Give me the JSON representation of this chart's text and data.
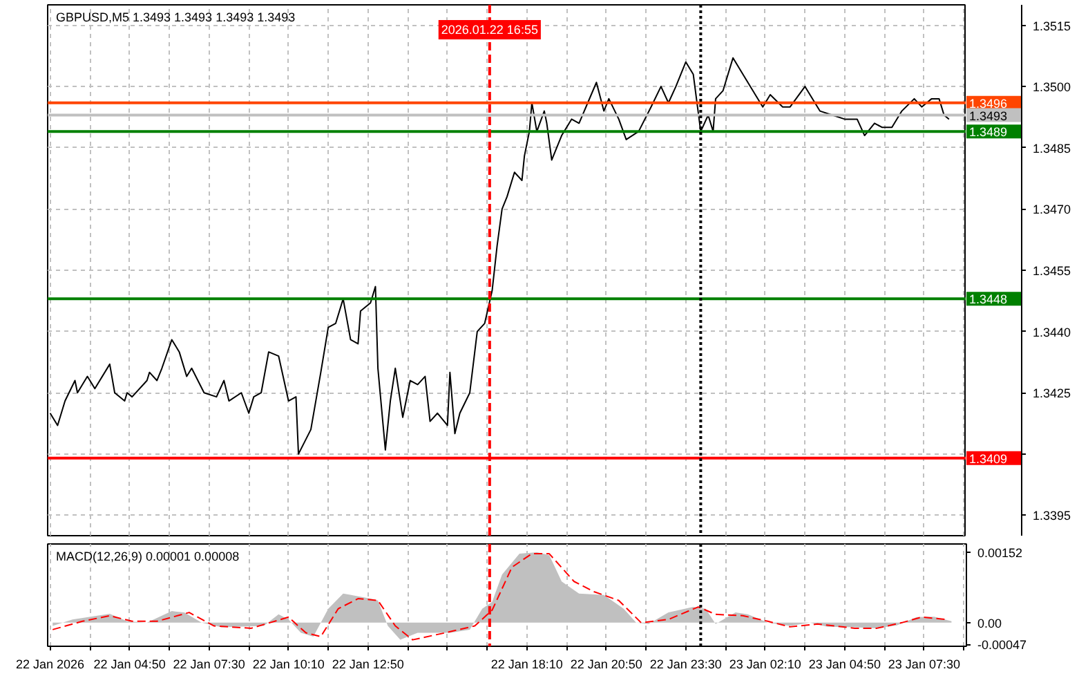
{
  "chart_data": [
    {
      "type": "line",
      "title": "GBPUSD,M5 1.3493 1.3493 1.3493 1.3493",
      "x": [
        "2026-01-22T02:10",
        "2026-01-22T02:25",
        "2026-01-22T02:40",
        "2026-01-22T03:00",
        "2026-01-22T03:05",
        "2026-01-22T03:25",
        "2026-01-22T03:40",
        "2026-01-22T04:10",
        "2026-01-22T04:20",
        "2026-01-22T04:40",
        "2026-01-22T04:45",
        "2026-01-22T04:55",
        "2026-01-22T05:25",
        "2026-01-22T05:30",
        "2026-01-22T05:45",
        "2026-01-22T05:55",
        "2026-01-22T06:15",
        "2026-01-22T06:30",
        "2026-01-22T06:45",
        "2026-01-22T06:55",
        "2026-01-22T07:20",
        "2026-01-22T07:45",
        "2026-01-22T08:00",
        "2026-01-22T08:10",
        "2026-01-22T08:35",
        "2026-01-22T08:50",
        "2026-01-22T09:00",
        "2026-01-22T09:15",
        "2026-01-22T09:30",
        "2026-01-22T09:50",
        "2026-01-22T10:10",
        "2026-01-22T10:25",
        "2026-01-22T10:30",
        "2026-01-22T10:55",
        "2026-01-22T11:15",
        "2026-01-22T11:30",
        "2026-01-22T11:45",
        "2026-01-22T12:00",
        "2026-01-22T12:15",
        "2026-01-22T12:30",
        "2026-01-22T12:35",
        "2026-01-22T12:55",
        "2026-01-22T13:05",
        "2026-01-22T13:10",
        "2026-01-22T13:25",
        "2026-01-22T13:35",
        "2026-01-22T13:45",
        "2026-01-22T14:00",
        "2026-01-22T14:15",
        "2026-01-22T14:30",
        "2026-01-22T14:45",
        "2026-01-22T14:55",
        "2026-01-22T15:10",
        "2026-01-22T15:30",
        "2026-01-22T15:35",
        "2026-01-22T15:45",
        "2026-01-22T15:55",
        "2026-01-22T16:15",
        "2026-01-22T16:30",
        "2026-01-22T16:45",
        "2026-01-22T17:00",
        "2026-01-22T17:10",
        "2026-01-22T17:20",
        "2026-01-22T17:30",
        "2026-01-22T17:45",
        "2026-01-22T18:00",
        "2026-01-22T18:05",
        "2026-01-22T18:15",
        "2026-01-22T18:20",
        "2026-01-22T18:30",
        "2026-01-22T18:45",
        "2026-01-22T18:50",
        "2026-01-22T19:00",
        "2026-01-22T19:20",
        "2026-01-22T19:40",
        "2026-01-22T19:55",
        "2026-01-22T20:30",
        "2026-01-22T20:45",
        "2026-01-22T20:55",
        "2026-01-22T21:15",
        "2026-01-22T21:30",
        "2026-01-22T21:55",
        "2026-01-22T22:20",
        "2026-01-22T22:40",
        "2026-01-22T22:55",
        "2026-01-22T23:10",
        "2026-01-22T23:30",
        "2026-01-22T23:45",
        "2026-01-23T00:00",
        "2026-01-23T00:15",
        "2026-01-23T00:25",
        "2026-01-23T00:30",
        "2026-01-23T00:45",
        "2026-01-23T01:05",
        "2026-01-23T01:25",
        "2026-01-23T01:40",
        "2026-01-23T02:05",
        "2026-01-23T02:20",
        "2026-01-23T02:45",
        "2026-01-23T03:00",
        "2026-01-23T03:30",
        "2026-01-23T04:00",
        "2026-01-23T04:25",
        "2026-01-23T04:50",
        "2026-01-23T05:15",
        "2026-01-23T05:30",
        "2026-01-23T05:50",
        "2026-01-23T06:05",
        "2026-01-23T06:25",
        "2026-01-23T06:45",
        "2026-01-23T07:10",
        "2026-01-23T07:25",
        "2026-01-23T07:45",
        "2026-01-23T08:00",
        "2026-01-23T08:10",
        "2026-01-23T08:20"
      ],
      "series": [
        {
          "color": "#000000",
          "values": [
            1.342,
            1.3417,
            1.3423,
            1.3428,
            1.3425,
            1.3429,
            1.3426,
            1.3432,
            1.3425,
            1.3423,
            1.3425,
            1.3424,
            1.3428,
            1.343,
            1.3428,
            1.3431,
            1.3438,
            1.3435,
            1.3429,
            1.3431,
            1.3425,
            1.3424,
            1.3428,
            1.3423,
            1.3425,
            1.342,
            1.3424,
            1.3425,
            1.3435,
            1.3434,
            1.3423,
            1.3424,
            1.341,
            1.3416,
            1.343,
            1.3441,
            1.3442,
            1.3448,
            1.3438,
            1.3437,
            1.3445,
            1.3447,
            1.3451,
            1.3431,
            1.3411,
            1.3423,
            1.3431,
            1.3419,
            1.3428,
            1.3427,
            1.3429,
            1.3418,
            1.342,
            1.3417,
            1.343,
            1.3415,
            1.342,
            1.3425,
            1.344,
            1.3442,
            1.345,
            1.3461,
            1.347,
            1.3473,
            1.3479,
            1.3477,
            1.3483,
            1.3489,
            1.3496,
            1.3489,
            1.3494,
            1.3491,
            1.3482,
            1.3488,
            1.3492,
            1.3491,
            1.3501,
            1.3494,
            1.3497,
            1.3492,
            1.3487,
            1.3489,
            1.3495,
            1.35,
            1.3496,
            1.35,
            1.3506,
            1.3503,
            1.3489,
            1.3493,
            1.3489,
            1.3497,
            1.3499,
            1.3507,
            1.3503,
            1.35,
            1.3495,
            1.3498,
            1.3495,
            1.3495,
            1.35,
            1.3494,
            1.3493,
            1.3492,
            1.3492,
            1.3488,
            1.3491,
            1.349,
            1.349,
            1.3494,
            1.3497,
            1.3495,
            1.3497,
            1.3497,
            1.3493,
            1.3492
          ]
        }
      ],
      "xlim": [
        "2026-01-22T02:05",
        "2026-01-23T08:55"
      ],
      "ylim": [
        1.339,
        1.352
      ],
      "xticks": [
        {
          "value": "2026-01-22T02:10",
          "label": null
        },
        {
          "value": "2026-01-22T03:30",
          "label": null
        },
        {
          "value": "2026-01-22T04:50",
          "label": null
        },
        {
          "value": "2026-01-22T06:10",
          "label": null
        },
        {
          "value": "2026-01-22T07:30",
          "label": null
        },
        {
          "value": "2026-01-22T08:50",
          "label": null
        },
        {
          "value": "2026-01-22T10:10",
          "label": null
        },
        {
          "value": "2026-01-22T11:30",
          "label": null
        },
        {
          "value": "2026-01-22T12:50",
          "label": null
        },
        {
          "value": "2026-01-22T14:10",
          "label": null
        },
        {
          "value": "2026-01-22T15:30",
          "label": null
        },
        {
          "value": "2026-01-22T16:50",
          "label": null
        },
        {
          "value": "2026-01-22T18:10",
          "label": null
        },
        {
          "value": "2026-01-22T19:30",
          "label": null
        },
        {
          "value": "2026-01-22T20:50",
          "label": null
        },
        {
          "value": "2026-01-22T22:10",
          "label": null
        },
        {
          "value": "2026-01-22T23:30",
          "label": null
        },
        {
          "value": "2026-01-23T00:50",
          "label": null
        },
        {
          "value": "2026-01-23T02:10",
          "label": null
        },
        {
          "value": "2026-01-23T03:30",
          "label": null
        },
        {
          "value": "2026-01-23T04:50",
          "label": null
        },
        {
          "value": "2026-01-23T06:10",
          "label": null
        },
        {
          "value": "2026-01-23T07:30",
          "label": null
        },
        {
          "value": "2026-01-23T08:50",
          "label": null
        }
      ],
      "yticks": [
        {
          "value": 1.3395,
          "label": "1.3395"
        },
        {
          "value": 1.341,
          "label": null
        },
        {
          "value": 1.3425,
          "label": "1.3425"
        },
        {
          "value": 1.344,
          "label": "1.3440"
        },
        {
          "value": 1.3455,
          "label": "1.3455"
        },
        {
          "value": 1.347,
          "label": "1.3470"
        },
        {
          "value": 1.3485,
          "label": "1.3485"
        },
        {
          "value": 1.35,
          "label": "1.3500"
        },
        {
          "value": 1.3515,
          "label": "1.3515"
        }
      ],
      "tick_labels": "y",
      "grid": true,
      "ref_lines": [
        {
          "axis": "y",
          "value": 1.3496,
          "label": "1.3496",
          "color": "#ff4500"
        },
        {
          "axis": "y",
          "value": 1.3493,
          "label": "1.3493",
          "color": "#c0c0c0"
        },
        {
          "axis": "y",
          "value": 1.3489,
          "label": "1.3489",
          "color": "#008000"
        },
        {
          "axis": "y",
          "value": 1.3448,
          "label": "1.3448",
          "color": "#008000"
        },
        {
          "axis": "y",
          "value": 1.3409,
          "label": "1.3409",
          "color": "#ff0000"
        },
        {
          "axis": "x",
          "value": "2026-01-22T16:55",
          "label": "2026.01.22 16:55",
          "color": "#ff0000",
          "line_style": "dashed"
        },
        {
          "axis": "x",
          "value": "2026-01-23T00:00",
          "color": "#000000",
          "line_style": "dotted"
        }
      ]
    },
    {
      "type": "area",
      "title": "MACD(12,26,9) 0.00001 0.00008",
      "series": [
        {
          "type": "area",
          "color": "#c0c0c0",
          "x": [
            "2026-01-22T02:15",
            "2026-01-22T02:55",
            "2026-01-22T03:45",
            "2026-01-22T04:10",
            "2026-01-22T04:45",
            "2026-01-22T05:25",
            "2026-01-22T06:15",
            "2026-01-22T06:40",
            "2026-01-22T07:15",
            "2026-01-22T07:55",
            "2026-01-22T09:20",
            "2026-01-22T09:50",
            "2026-01-22T10:10",
            "2026-01-22T10:35",
            "2026-01-22T11:00",
            "2026-01-22T11:30",
            "2026-01-22T12:00",
            "2026-01-22T12:55",
            "2026-01-22T13:10",
            "2026-01-22T13:30",
            "2026-01-22T13:55",
            "2026-01-22T14:30",
            "2026-01-22T15:35",
            "2026-01-22T16:15",
            "2026-01-22T16:40",
            "2026-01-22T17:00",
            "2026-01-22T17:20",
            "2026-01-22T17:55",
            "2026-01-22T18:30",
            "2026-01-22T18:55",
            "2026-01-22T19:20",
            "2026-01-22T19:55",
            "2026-01-22T20:45",
            "2026-01-22T21:25",
            "2026-01-22T21:50",
            "2026-01-22T22:15",
            "2026-01-22T22:55",
            "2026-01-22T23:45",
            "2026-01-23T00:10",
            "2026-01-23T00:30",
            "2026-01-23T01:10",
            "2026-01-23T01:35",
            "2026-01-23T02:15",
            "2026-01-23T03:00",
            "2026-01-23T03:40",
            "2026-01-23T04:15",
            "2026-01-23T05:10",
            "2026-01-23T05:55",
            "2026-01-23T06:35",
            "2026-01-23T07:15",
            "2026-01-23T07:50",
            "2026-01-23T08:25"
          ],
          "values": [
            -7e-05,
            7e-05,
            0.00015,
            0.00019,
            3e-05,
            0,
            0.00025,
            0.00022,
            0,
            -0.0001,
            -7e-05,
            0.00018,
            7e-05,
            -0.00022,
            -0.0003,
            0.0003,
            0.00063,
            0.00052,
            0.00048,
            -7e-05,
            -0.00037,
            -0.00022,
            -0.00022,
            -0.00015,
            0.0003,
            0.00045,
            0.00104,
            0.00149,
            0.00152,
            0.00146,
            0.00089,
            0.00063,
            0.0006,
            0.0003,
            0,
            -3e-05,
            0.00022,
            0.00034,
            0.0003,
            -3e-05,
            0.00022,
            0.00018,
            0,
            -7e-05,
            0,
            -9e-05,
            -0.0001,
            -0.00012,
            -6e-05,
            0.00012,
            0.00013,
            3e-05
          ]
        },
        {
          "type": "line",
          "color": "#ff0000",
          "line_style": "dashed",
          "x": [
            "2026-01-22T02:15",
            "2026-01-22T03:15",
            "2026-01-22T04:10",
            "2026-01-22T04:55",
            "2026-01-22T05:45",
            "2026-01-22T06:50",
            "2026-01-22T07:40",
            "2026-01-22T08:55",
            "2026-01-22T10:10",
            "2026-01-22T10:45",
            "2026-01-22T11:15",
            "2026-01-22T11:50",
            "2026-01-22T12:30",
            "2026-01-22T13:10",
            "2026-01-22T13:45",
            "2026-01-22T14:20",
            "2026-01-22T15:25",
            "2026-01-22T16:25",
            "2026-01-22T17:00",
            "2026-01-22T17:40",
            "2026-01-22T18:20",
            "2026-01-22T18:55",
            "2026-01-22T19:45",
            "2026-01-22T20:25",
            "2026-01-22T21:15",
            "2026-01-22T22:00",
            "2026-01-22T22:55",
            "2026-01-22T23:55",
            "2026-01-23T00:30",
            "2026-01-23T01:25",
            "2026-01-23T02:15",
            "2026-01-23T03:00",
            "2026-01-23T03:55",
            "2026-01-23T05:10",
            "2026-01-23T05:55",
            "2026-01-23T06:45",
            "2026-01-23T07:25",
            "2026-01-23T08:15"
          ],
          "values": [
            -0.00015,
            3e-05,
            0.00015,
            3e-05,
            3e-05,
            0.00022,
            -7e-05,
            -0.00012,
            0.00012,
            -0.00022,
            -0.0003,
            0.0003,
            0.00052,
            0.00048,
            -7e-05,
            -0.00037,
            -0.00022,
            -7e-05,
            0.00027,
            0.0012,
            0.00149,
            0.00149,
            0.00089,
            0.00067,
            0.00048,
            0,
            7e-05,
            0.00034,
            0.00018,
            0.00015,
            3e-05,
            -9e-05,
            -3e-05,
            -0.00012,
            -0.00012,
            0,
            0.00012,
            7e-05
          ]
        }
      ],
      "xlim": [
        "2026-01-22T02:05",
        "2026-01-23T08:55"
      ],
      "ylim": [
        -0.00051,
        0.0017
      ],
      "xticks": [
        {
          "value": "2026-01-22T02:10",
          "label": "22 Jan 2026"
        },
        {
          "value": "2026-01-22T03:30",
          "label": null
        },
        {
          "value": "2026-01-22T04:50",
          "label": "22 Jan 04:50"
        },
        {
          "value": "2026-01-22T06:10",
          "label": null
        },
        {
          "value": "2026-01-22T07:30",
          "label": "22 Jan 07:30"
        },
        {
          "value": "2026-01-22T08:50",
          "label": null
        },
        {
          "value": "2026-01-22T10:10",
          "label": "22 Jan 10:10"
        },
        {
          "value": "2026-01-22T11:30",
          "label": null
        },
        {
          "value": "2026-01-22T12:50",
          "label": "22 Jan 12:50"
        },
        {
          "value": "2026-01-22T14:10",
          "label": null
        },
        {
          "value": "2026-01-22T15:30",
          "label": null
        },
        {
          "value": "2026-01-22T16:50",
          "label": null
        },
        {
          "value": "2026-01-22T18:10",
          "label": "22 Jan 18:10"
        },
        {
          "value": "2026-01-22T19:30",
          "label": null
        },
        {
          "value": "2026-01-22T20:50",
          "label": "22 Jan 20:50"
        },
        {
          "value": "2026-01-22T22:10",
          "label": null
        },
        {
          "value": "2026-01-22T23:30",
          "label": "22 Jan 23:30"
        },
        {
          "value": "2026-01-23T00:50",
          "label": null
        },
        {
          "value": "2026-01-23T02:10",
          "label": "23 Jan 02:10"
        },
        {
          "value": "2026-01-23T03:30",
          "label": null
        },
        {
          "value": "2026-01-23T04:50",
          "label": "23 Jan 04:50"
        },
        {
          "value": "2026-01-23T06:10",
          "label": null
        },
        {
          "value": "2026-01-23T07:30",
          "label": "23 Jan 07:30"
        },
        {
          "value": "2026-01-23T08:50",
          "label": null
        }
      ],
      "yticks": [
        {
          "value": -0.00047,
          "label": "-0.00047"
        },
        {
          "value": 0,
          "label": "0.00"
        },
        {
          "value": 0.00152,
          "label": "0.00152"
        }
      ],
      "grid": "x",
      "ref_lines": [
        {
          "axis": "x",
          "value": "2026-01-22T16:55",
          "color": "#ff0000",
          "line_style": "dashed"
        },
        {
          "axis": "x",
          "value": "2026-01-23T00:00",
          "color": "#000000",
          "line_style": "dotted"
        }
      ]
    }
  ]
}
